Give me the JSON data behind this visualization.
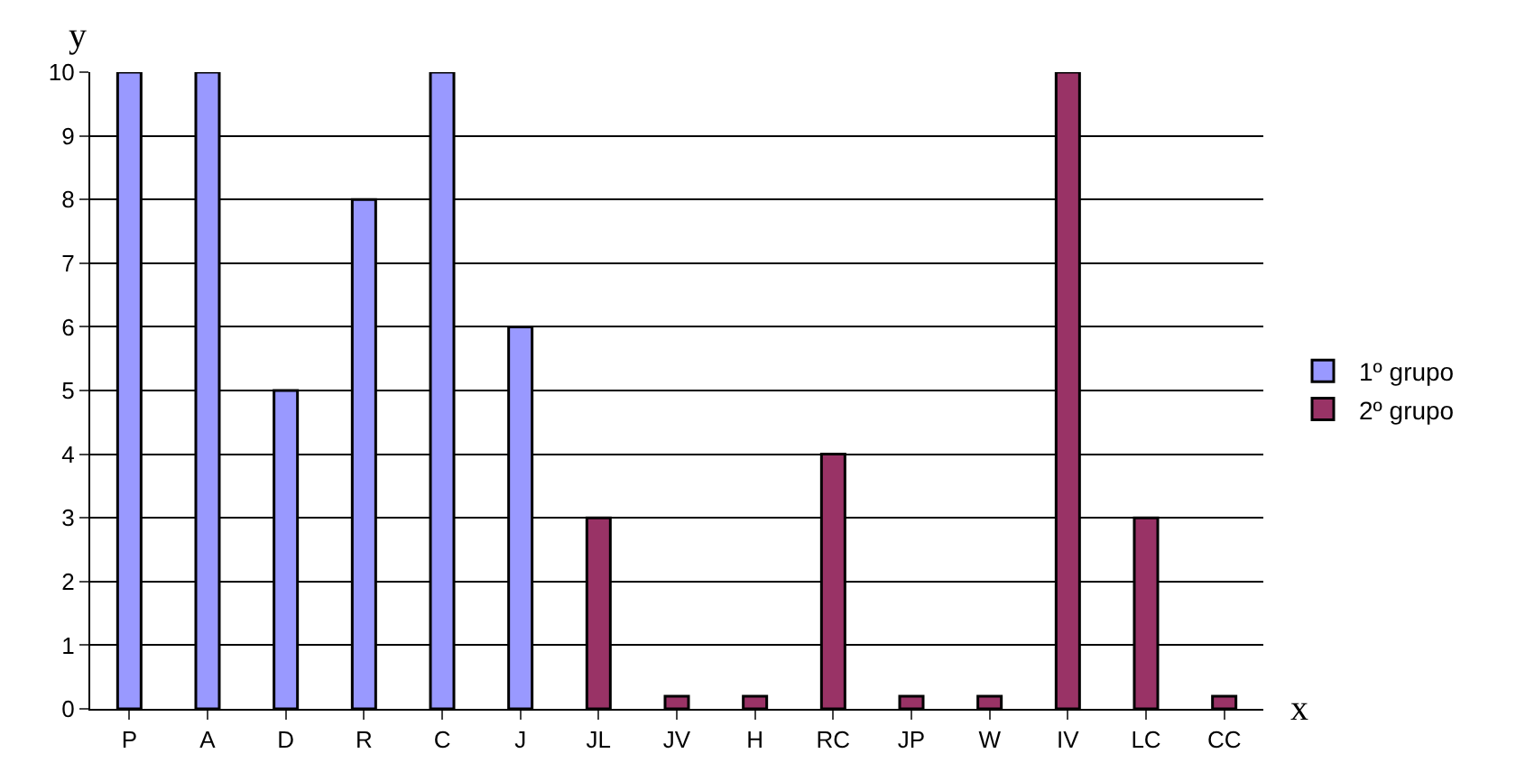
{
  "chart_data": {
    "type": "bar",
    "xlabel": "x",
    "ylabel": "y",
    "categories": [
      "P",
      "A",
      "D",
      "R",
      "C",
      "J",
      "JL",
      "JV",
      "H",
      "RC",
      "JP",
      "W",
      "IV",
      "LC",
      "CC"
    ],
    "series": [
      {
        "name": "1º grupo",
        "color": "#9999ff",
        "values": [
          10,
          10,
          5,
          8,
          10,
          6,
          null,
          null,
          null,
          null,
          null,
          null,
          null,
          null,
          null
        ]
      },
      {
        "name": "2º grupo",
        "color": "#993366",
        "values": [
          null,
          null,
          null,
          null,
          null,
          null,
          3,
          0.2,
          0.2,
          4,
          0.2,
          0.2,
          10,
          3,
          0.2
        ]
      }
    ],
    "ylim": [
      0,
      10
    ],
    "yticks": [
      0,
      1,
      2,
      3,
      4,
      5,
      6,
      7,
      8,
      9,
      10
    ],
    "grid": "y",
    "legend": "right"
  }
}
